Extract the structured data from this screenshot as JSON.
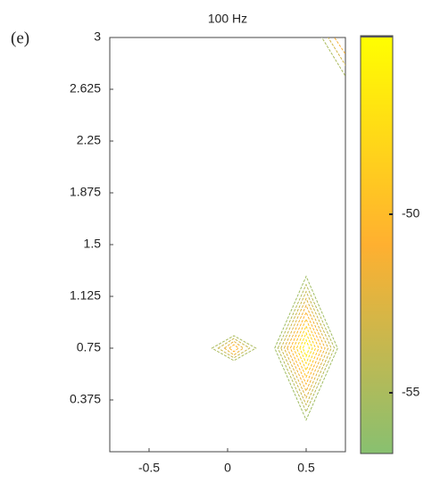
{
  "chart_data": {
    "type": "contour",
    "panel_label": "(e)",
    "title": "100  Hz",
    "xlim": [
      -0.75,
      0.75
    ],
    "xticks": [
      -0.5,
      0,
      0.5
    ],
    "ylim": [
      0,
      3
    ],
    "yticks": [
      0.375,
      0.75,
      1.125,
      1.5,
      1.875,
      2.25,
      2.625,
      3
    ],
    "colormap": [
      "#88c070",
      "#ffb030",
      "#ffff00"
    ],
    "clim": [
      -56.7,
      -45
    ],
    "cticks": [
      -55,
      -50
    ],
    "contours": [
      {
        "x": 0.5,
        "y": 0.75,
        "dx": [
          0.2,
          0.18,
          0.16,
          0.14,
          0.12,
          0.1,
          0.08,
          0.06,
          0.04,
          0.02
        ],
        "dy": [
          0.52,
          0.46,
          0.41,
          0.36,
          0.31,
          0.26,
          0.21,
          0.16,
          0.11,
          0.06
        ],
        "levels": [
          -55.5,
          -54.5,
          -53.5,
          -52.5,
          -51.5,
          -50.5,
          -49.5,
          -48.5,
          -47.5,
          -46.5
        ]
      },
      {
        "x": 0.04,
        "y": 0.75,
        "dx": [
          0.14,
          0.1,
          0.06,
          0.03
        ],
        "dy": [
          0.09,
          0.07,
          0.05,
          0.025
        ],
        "levels": [
          -55,
          -53.5,
          -52,
          -50.5
        ]
      },
      {
        "x": 0.75,
        "y": 3,
        "dx": [
          0.15,
          0.11,
          0.07
        ],
        "dy": [
          0.28,
          0.2,
          0.12
        ],
        "levels": [
          -55,
          -53,
          -51
        ]
      }
    ]
  }
}
